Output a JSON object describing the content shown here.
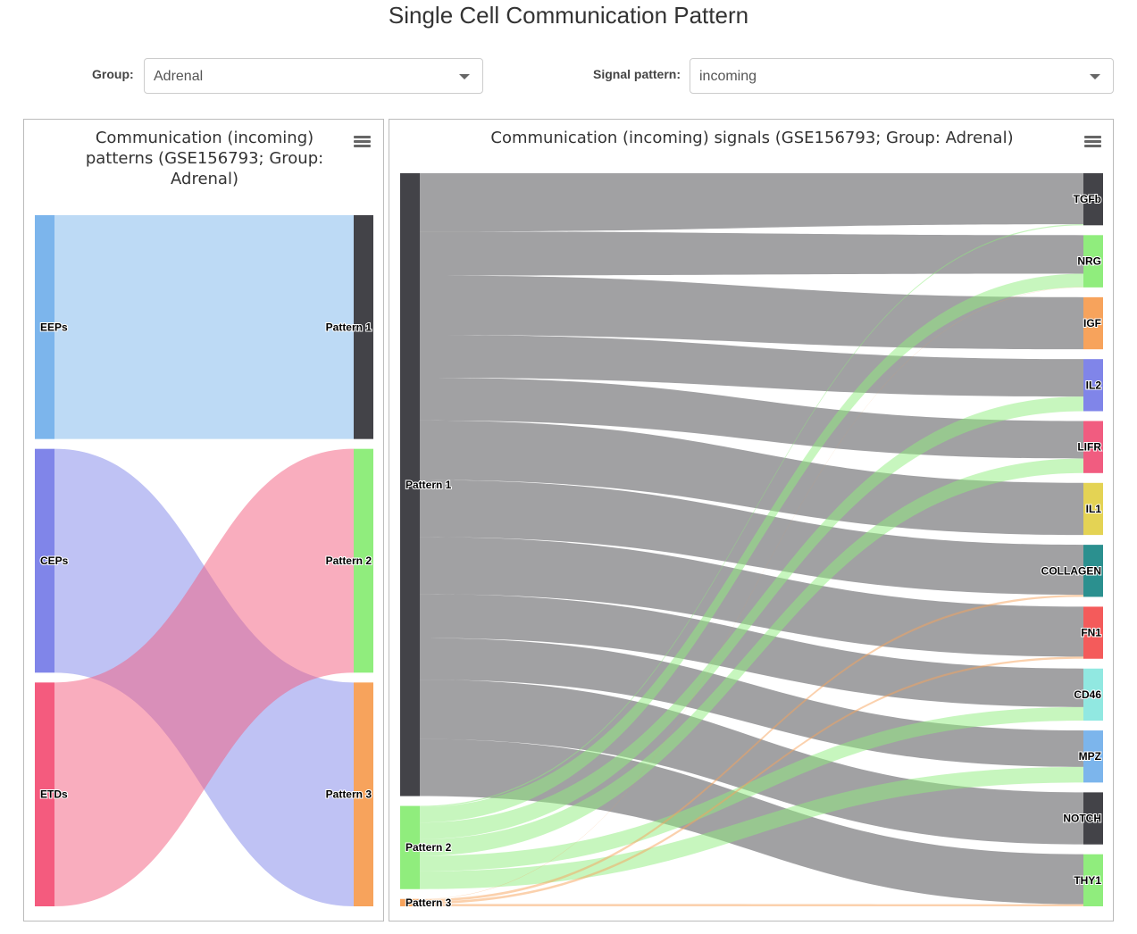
{
  "page": {
    "title": "Single Cell Communication Pattern"
  },
  "controls": {
    "group_label": "Group:",
    "group_value": "Adrenal",
    "signal_label": "Signal pattern:",
    "signal_value": "incoming"
  },
  "colors": {
    "EEPs": "#7cb5ec",
    "CEPs": "#8085e9",
    "ETDs": "#f45b7e",
    "Pattern 1": "#434348",
    "Pattern 2": "#90ed7d",
    "Pattern 3": "#f7a35c",
    "TGFb": "#434348",
    "NRG": "#90ed7d",
    "IGF": "#f7a35c",
    "IL2": "#8085e9",
    "LIFR": "#f15c80",
    "IL1": "#e4d354",
    "COLLAGEN": "#2b908f",
    "FN1": "#f45b5b",
    "CD46": "#91e8e1",
    "MPZ": "#7cb5ec",
    "NOTCH": "#434348",
    "THY1": "#90ed7d"
  },
  "chart_data": [
    {
      "type": "sankey",
      "title": "Communication (incoming) patterns (GSE156793; Group: Adrenal)",
      "nodes_left": [
        "EEPs",
        "CEPs",
        "ETDs"
      ],
      "nodes_right": [
        "Pattern 1",
        "Pattern 2",
        "Pattern 3"
      ],
      "links": [
        {
          "from": "EEPs",
          "to": "Pattern 1",
          "weight": 1
        },
        {
          "from": "CEPs",
          "to": "Pattern 3",
          "weight": 1
        },
        {
          "from": "ETDs",
          "to": "Pattern 2",
          "weight": 1
        }
      ]
    },
    {
      "type": "sankey",
      "title": "Communication (incoming) signals (GSE156793; Group: Adrenal)",
      "nodes_left": [
        "Pattern 1",
        "Pattern 2",
        "Pattern 3"
      ],
      "nodes_right": [
        "TGFb",
        "NRG",
        "IGF",
        "IL2",
        "LIFR",
        "IL1",
        "COLLAGEN",
        "FN1",
        "CD46",
        "MPZ",
        "NOTCH",
        "THY1"
      ],
      "links": [
        {
          "from": "Pattern 1",
          "to": "TGFb",
          "weight": 0.98
        },
        {
          "from": "Pattern 2",
          "to": "TGFb",
          "weight": 0.02
        },
        {
          "from": "Pattern 1",
          "to": "NRG",
          "weight": 0.74
        },
        {
          "from": "Pattern 2",
          "to": "NRG",
          "weight": 0.26
        },
        {
          "from": "Pattern 3",
          "to": "NRG",
          "weight": 0.004
        },
        {
          "from": "Pattern 1",
          "to": "IGF",
          "weight": 1.0
        },
        {
          "from": "Pattern 1",
          "to": "IL2",
          "weight": 0.72
        },
        {
          "from": "Pattern 2",
          "to": "IL2",
          "weight": 0.28
        },
        {
          "from": "Pattern 1",
          "to": "LIFR",
          "weight": 0.72
        },
        {
          "from": "Pattern 2",
          "to": "LIFR",
          "weight": 0.28
        },
        {
          "from": "Pattern 1",
          "to": "IL1",
          "weight": 1.0
        },
        {
          "from": "Pattern 1",
          "to": "COLLAGEN",
          "weight": 0.96
        },
        {
          "from": "Pattern 3",
          "to": "COLLAGEN",
          "weight": 0.04
        },
        {
          "from": "Pattern 1",
          "to": "FN1",
          "weight": 0.96
        },
        {
          "from": "Pattern 3",
          "to": "FN1",
          "weight": 0.04
        },
        {
          "from": "Pattern 1",
          "to": "CD46",
          "weight": 0.74
        },
        {
          "from": "Pattern 2",
          "to": "CD46",
          "weight": 0.26
        },
        {
          "from": "Pattern 1",
          "to": "MPZ",
          "weight": 0.7
        },
        {
          "from": "Pattern 2",
          "to": "MPZ",
          "weight": 0.3
        },
        {
          "from": "Pattern 1",
          "to": "NOTCH",
          "weight": 1.0
        },
        {
          "from": "Pattern 1",
          "to": "THY1",
          "weight": 0.96
        },
        {
          "from": "Pattern 3",
          "to": "THY1",
          "weight": 0.04
        }
      ]
    }
  ]
}
